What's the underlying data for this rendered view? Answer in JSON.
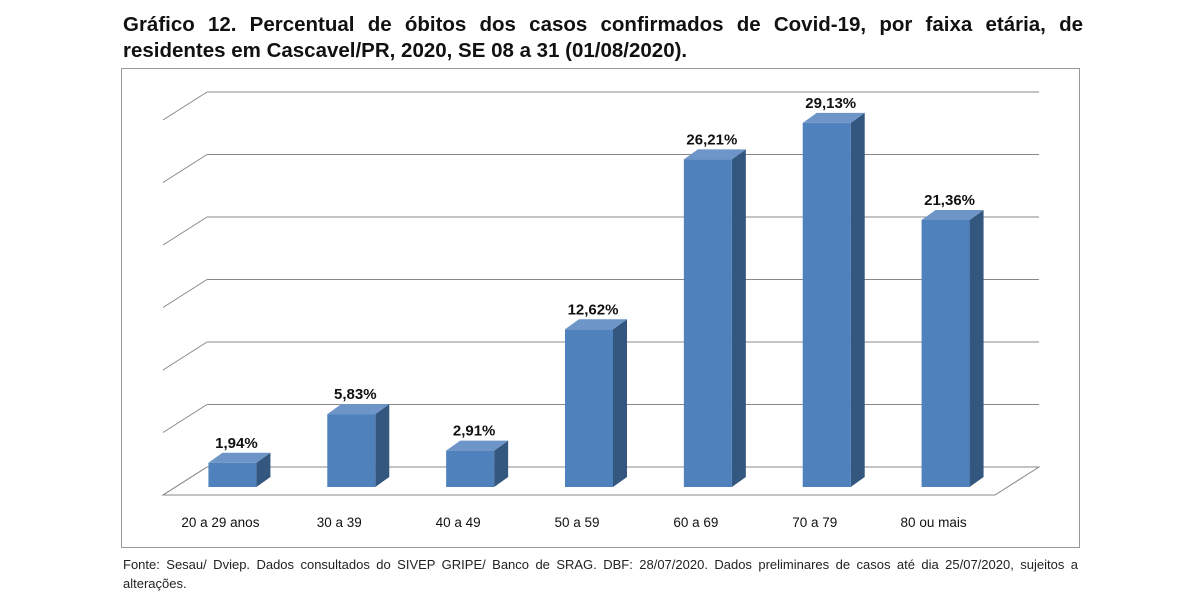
{
  "title": "Gráfico 12. Percentual de óbitos dos casos confirmados de Covid-19, por faixa etária, de residentes em Cascavel/PR, 2020, SE 08 a 31 (01/08/2020).",
  "footer": "Fonte: Sesau/ Dviep. Dados consultados do SIVEP GRIPE/ Banco de SRAG. DBF: 28/07/2020. Dados preliminares de casos até dia 25/07/2020, sujeitos a alterações.",
  "chart_data": {
    "type": "bar",
    "style": "3d-column",
    "title": "Gráfico 12. Percentual de óbitos dos casos confirmados de Covid-19, por faixa etária, de residentes em Cascavel/PR, 2020, SE 08 a 31 (01/08/2020).",
    "categories": [
      "20 a 29 anos",
      "30 a 39",
      "40 a 49",
      "50 a 59",
      "60 a 69",
      "70 a 79",
      "80 ou mais"
    ],
    "values": [
      1.94,
      5.83,
      2.91,
      12.62,
      26.21,
      29.13,
      21.36
    ],
    "data_labels": [
      "1,94%",
      "5,83%",
      "2,91%",
      "12,62%",
      "26,21%",
      "29,13%",
      "21,36%"
    ],
    "ylim": [
      0,
      30
    ],
    "ystep": 5,
    "grid": true,
    "y_tick_labels_shown": false,
    "bar_color": "#4F81BD"
  }
}
